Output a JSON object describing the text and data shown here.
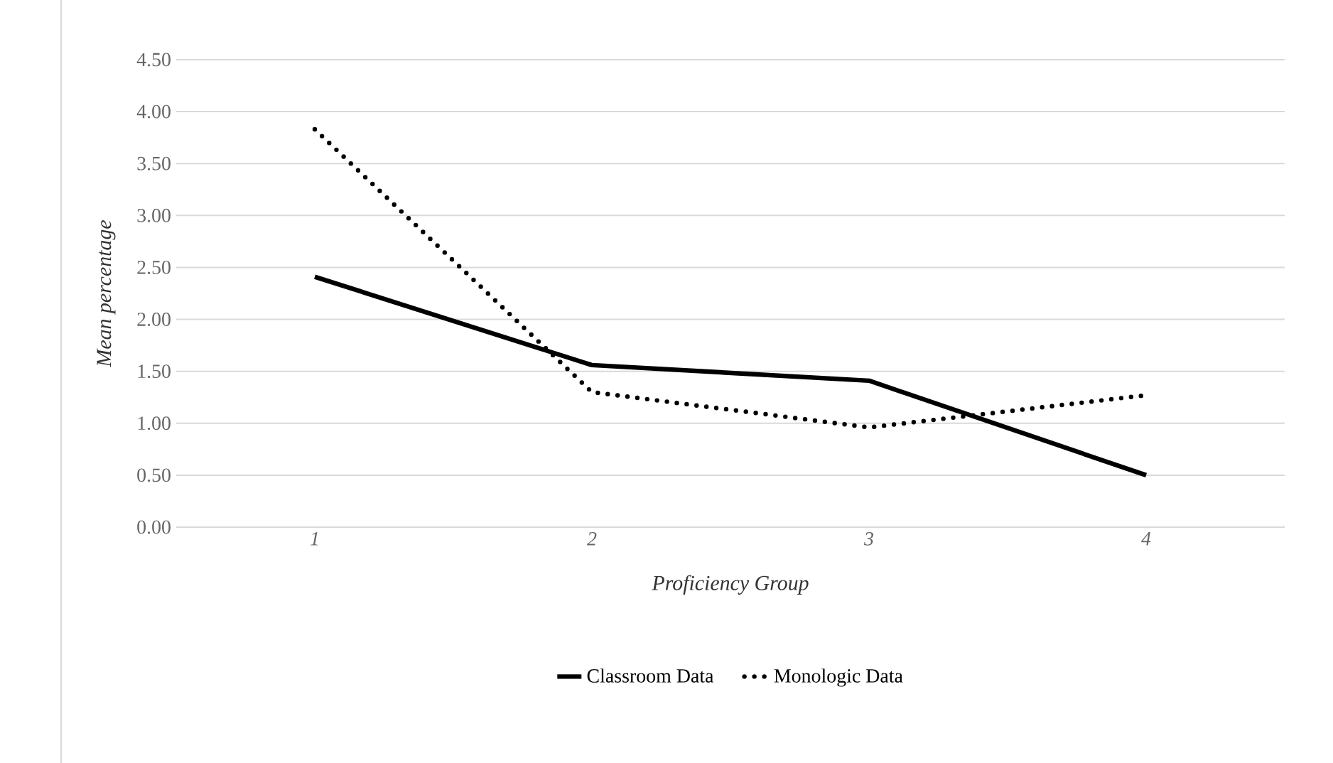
{
  "chart_data": {
    "type": "line",
    "xlabel": "Proficiency Group",
    "ylabel": "Mean percentage",
    "categories": [
      "1",
      "2",
      "3",
      "4"
    ],
    "series": [
      {
        "name": "Classroom Data",
        "color": "#000000",
        "line_style": "solid",
        "values": [
          2.41,
          1.56,
          1.41,
          0.5
        ]
      },
      {
        "name": "Monologic Data",
        "color": "#000000",
        "line_style": "dotted",
        "values": [
          3.83,
          1.3,
          0.96,
          1.27
        ]
      }
    ],
    "ylim": [
      0,
      4.5
    ],
    "yticks": [
      {
        "value": 0,
        "label": "0.00"
      },
      {
        "value": 0.5,
        "label": "0.50"
      },
      {
        "value": 1,
        "label": "1.00"
      },
      {
        "value": 1.5,
        "label": "1.50"
      },
      {
        "value": 2,
        "label": "2.00"
      },
      {
        "value": 2.5,
        "label": "2.50"
      },
      {
        "value": 3,
        "label": "3.00"
      },
      {
        "value": 3.5,
        "label": "3.50"
      },
      {
        "value": 4,
        "label": "4.00"
      },
      {
        "value": 4.5,
        "label": "4.50"
      }
    ],
    "grid": "y",
    "legend": "bottom",
    "marker": "none"
  }
}
